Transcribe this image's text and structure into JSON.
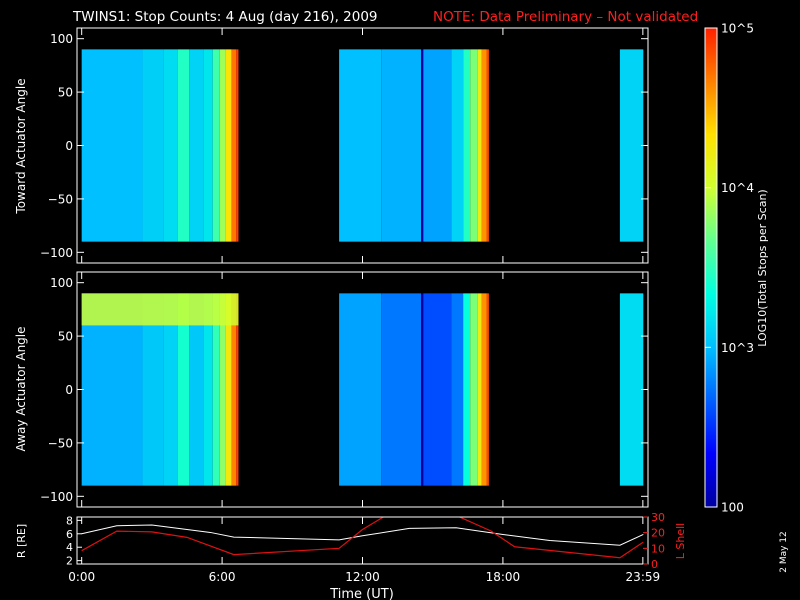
{
  "title": {
    "main": "TWINS1: Stop Counts:  4 Aug (day 216), 2009",
    "note": "NOTE: Data Preliminary – Not validated"
  },
  "footer_date": "2 May 12",
  "colors": {
    "background": "#000000",
    "axes": "#ffffff",
    "note": "#ff1f1f",
    "rshell_line": "#ffffff",
    "lshell_line": "#dd1111"
  },
  "colorbar": {
    "label": "LOG10(Total Stops per Scan)",
    "tick_labels": [
      "10^5",
      "10^4",
      "10^3",
      "100"
    ],
    "tick_values": [
      100000,
      10000,
      1000,
      100
    ],
    "range": [
      100,
      100000
    ],
    "scale": "log",
    "colormap": [
      "#0000a0",
      "#0000ff",
      "#0060ff",
      "#00c0ff",
      "#00ffe0",
      "#60ff90",
      "#d0ff30",
      "#ffe000",
      "#ff8000",
      "#ff2000"
    ]
  },
  "panels": [
    {
      "id": "toward",
      "ylabel": "Toward Actuator Angle",
      "yticks": [
        "100",
        "50",
        "0",
        "−50",
        "−100"
      ],
      "ytick_values": [
        100,
        50,
        0,
        -50,
        -100
      ],
      "ylim": [
        -110,
        110
      ]
    },
    {
      "id": "away",
      "ylabel": "Away Actuator Angle",
      "yticks": [
        "100",
        "50",
        "0",
        "−50",
        "−100"
      ],
      "ytick_values": [
        100,
        50,
        0,
        -50,
        -100
      ],
      "ylim": [
        -110,
        110
      ]
    }
  ],
  "orbit_panel": {
    "ylabel_left": "R [RE]",
    "ylabel_right": "L Shell",
    "left_ticks": [
      "8",
      "6",
      "4",
      "2"
    ],
    "left_tick_values": [
      8,
      6,
      4,
      2
    ],
    "left_range": [
      1.5,
      8.5
    ],
    "right_ticks": [
      "30",
      "20",
      "10",
      "0"
    ],
    "right_tick_values": [
      30,
      20,
      10,
      0
    ],
    "right_range": [
      0,
      30
    ]
  },
  "xaxis": {
    "label": "Time (UT)",
    "tick_labels": [
      "0:00",
      "6:00",
      "12:00",
      "18:00",
      "23:59"
    ],
    "tick_values": [
      0,
      6,
      12,
      18,
      23.98
    ],
    "range": [
      -0.2,
      24.2
    ]
  },
  "chart_data": {
    "type": "heatmap",
    "title": "TWINS1: Stop Counts:  4 Aug (day 216), 2009",
    "xlabel": "Time (UT)",
    "data_blocks": [
      {
        "start_hr": 0.0,
        "end_hr": 6.7
      },
      {
        "start_hr": 11.0,
        "end_hr": 17.4
      },
      {
        "start_hr": 23.0,
        "end_hr": 24.0
      }
    ],
    "angle_range": [
      -90,
      90
    ],
    "toward_columns": [
      {
        "t0": 0.0,
        "t1": 2.6,
        "log": 3.0
      },
      {
        "t0": 2.6,
        "t1": 3.5,
        "log": 3.08
      },
      {
        "t0": 3.5,
        "t1": 4.1,
        "log": 3.15
      },
      {
        "t0": 4.1,
        "t1": 4.6,
        "log": 3.45
      },
      {
        "t0": 4.6,
        "t1": 5.2,
        "log": 3.1
      },
      {
        "t0": 5.2,
        "t1": 5.6,
        "log": 3.2
      },
      {
        "t0": 5.6,
        "t1": 5.9,
        "log": 3.55
      },
      {
        "t0": 5.9,
        "t1": 6.15,
        "log": 3.85
      },
      {
        "t0": 6.15,
        "t1": 6.4,
        "log": 4.3
      },
      {
        "t0": 6.4,
        "t1": 6.6,
        "log": 4.7
      },
      {
        "t0": 6.6,
        "t1": 6.7,
        "log": 4.9
      },
      {
        "t0": 11.0,
        "t1": 12.8,
        "log": 3.0
      },
      {
        "t0": 12.8,
        "t1": 14.5,
        "log": 2.95
      },
      {
        "t0": 14.5,
        "t1": 14.6,
        "log": 2.0
      },
      {
        "t0": 14.6,
        "t1": 15.8,
        "log": 2.9
      },
      {
        "t0": 15.8,
        "t1": 16.3,
        "log": 3.1
      },
      {
        "t0": 16.3,
        "t1": 16.6,
        "log": 3.45
      },
      {
        "t0": 16.6,
        "t1": 16.9,
        "log": 3.75
      },
      {
        "t0": 16.9,
        "t1": 17.1,
        "log": 4.2
      },
      {
        "t0": 17.1,
        "t1": 17.3,
        "log": 4.6
      },
      {
        "t0": 17.3,
        "t1": 17.4,
        "log": 4.85
      },
      {
        "t0": 23.0,
        "t1": 24.0,
        "log": 3.1
      }
    ],
    "away_columns": [
      {
        "t0": 0.0,
        "t1": 2.6,
        "log": 2.95
      },
      {
        "t0": 2.6,
        "t1": 3.5,
        "log": 3.05
      },
      {
        "t0": 3.5,
        "t1": 4.1,
        "log": 3.1
      },
      {
        "t0": 4.1,
        "t1": 4.6,
        "log": 3.4
      },
      {
        "t0": 4.6,
        "t1": 5.2,
        "log": 3.05
      },
      {
        "t0": 5.2,
        "t1": 5.6,
        "log": 3.2
      },
      {
        "t0": 5.6,
        "t1": 5.9,
        "log": 3.5
      },
      {
        "t0": 5.9,
        "t1": 6.15,
        "log": 3.8
      },
      {
        "t0": 6.15,
        "t1": 6.4,
        "log": 4.25
      },
      {
        "t0": 6.4,
        "t1": 6.6,
        "log": 4.65
      },
      {
        "t0": 6.6,
        "t1": 6.7,
        "log": 4.9
      },
      {
        "t0": 11.0,
        "t1": 12.8,
        "log": 2.9
      },
      {
        "t0": 12.8,
        "t1": 14.5,
        "log": 2.75
      },
      {
        "t0": 14.5,
        "t1": 14.6,
        "log": 2.0
      },
      {
        "t0": 14.6,
        "t1": 15.8,
        "log": 2.6
      },
      {
        "t0": 15.8,
        "t1": 16.3,
        "log": 2.75
      },
      {
        "t0": 16.3,
        "t1": 16.6,
        "log": 3.35
      },
      {
        "t0": 16.6,
        "t1": 16.9,
        "log": 3.75
      },
      {
        "t0": 16.9,
        "t1": 17.1,
        "log": 4.2
      },
      {
        "t0": 17.1,
        "t1": 17.3,
        "log": 4.6
      },
      {
        "t0": 17.3,
        "t1": 17.4,
        "log": 4.85
      },
      {
        "t0": 23.0,
        "t1": 24.0,
        "log": 3.15
      }
    ],
    "away_bright_band": {
      "angle_min": 60,
      "angle_max": 90,
      "t0": 0.0,
      "t1": 6.7,
      "log": 4.0
    },
    "series": [
      {
        "name": "R",
        "x": [
          0,
          1.5,
          3,
          5.5,
          6.5,
          11,
          12,
          14,
          16,
          18,
          20,
          23,
          24
        ],
        "y": [
          6.0,
          7.2,
          7.3,
          6.2,
          5.5,
          5.1,
          5.7,
          6.8,
          6.9,
          5.9,
          5.0,
          4.3,
          5.9
        ]
      },
      {
        "name": "L Shell",
        "x": [
          0,
          1.5,
          3,
          4.5,
          6.5,
          11,
          12,
          13,
          16,
          17.5,
          18.5,
          23,
          24
        ],
        "y": [
          8.5,
          21,
          20.5,
          17,
          6,
          10,
          22,
          31,
          31,
          21,
          11,
          4,
          14
        ]
      }
    ],
    "ylim": [
      -110,
      110
    ],
    "xlim": [
      0,
      24
    ]
  }
}
